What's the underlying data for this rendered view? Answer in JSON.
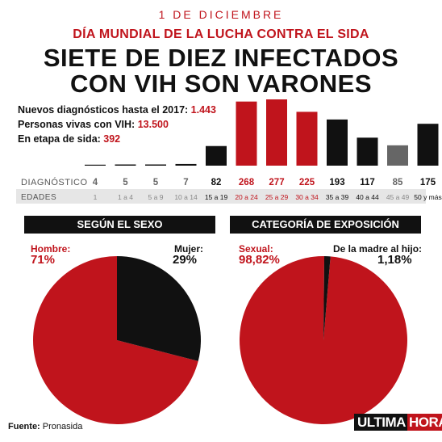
{
  "header": {
    "date": "1 DE DICIEMBRE",
    "subtitle": "DÍA MUNDIAL DE LA LUCHA CONTRA EL SIDA",
    "headline_line1": "SIETE DE DIEZ INFECTADOS",
    "headline_line2": "CON VIH SON VARONES"
  },
  "stats": [
    {
      "label": "Nuevos diagnósticos hasta el 2017: ",
      "value": "1.443"
    },
    {
      "label": "Personas vivas con VIH: ",
      "value": "13.500"
    },
    {
      "label": "En etapa de sida: ",
      "value": "392"
    }
  ],
  "colors": {
    "red": "#c0141c",
    "black": "#111111",
    "gray": "#666666",
    "row_bg": "#e6e6e6"
  },
  "chart_data": [
    {
      "type": "bar",
      "row_labels": [
        "DIAGNÓSTICO",
        "EDADES"
      ],
      "categories": [
        "1",
        "1 a 4",
        "5 a 9",
        "10 a 14",
        "15 a 19",
        "20 a 24",
        "25 a 29",
        "30 a 34",
        "35 a 39",
        "40 a 44",
        "45 a 49",
        "50 y más"
      ],
      "values": [
        4,
        5,
        5,
        7,
        82,
        268,
        277,
        225,
        193,
        117,
        85,
        175
      ],
      "bar_colors": [
        "black",
        "black",
        "black",
        "black",
        "black",
        "red",
        "red",
        "red",
        "black",
        "black",
        "gray",
        "black"
      ],
      "label_colors": [
        "gray",
        "gray",
        "gray",
        "gray",
        "black",
        "red",
        "red",
        "red",
        "black",
        "black",
        "gray",
        "black"
      ]
    },
    {
      "type": "pie",
      "title": "SEGÚN EL SEXO",
      "slices": [
        {
          "label": "Hombre:",
          "percent_label": "71%",
          "value": 71,
          "color": "red"
        },
        {
          "label": "Mujer:",
          "percent_label": "29%",
          "value": 29,
          "color": "black"
        }
      ]
    },
    {
      "type": "pie",
      "title": "CATEGORÍA DE EXPOSICIÓN",
      "slices": [
        {
          "label": "Sexual:",
          "percent_label": "98,82%",
          "value": 98.82,
          "color": "red"
        },
        {
          "label": "De la madre al hijo:",
          "percent_label": "1,18%",
          "value": 1.18,
          "color": "black"
        }
      ]
    }
  ],
  "footer": {
    "source_label": "Fuente:",
    "source_value": " Pronasida",
    "logo_part1": "ULTIMA",
    "logo_part2": "HORA"
  }
}
